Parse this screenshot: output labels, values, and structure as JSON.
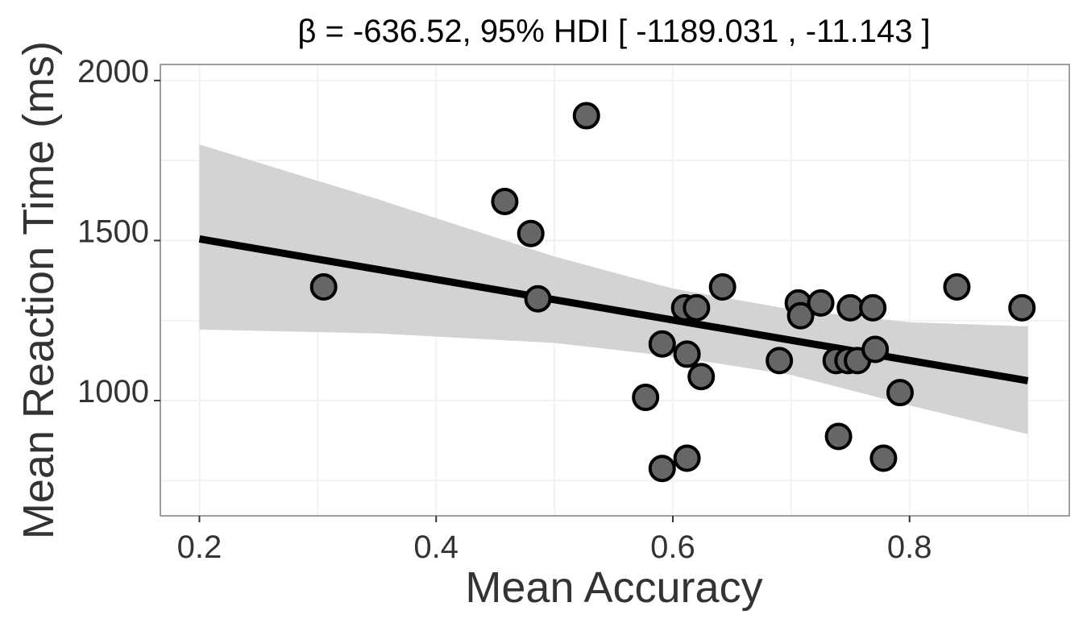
{
  "chart_data": {
    "type": "scatter",
    "title": "β = -636.52, 95% HDI [ -1189.031 , -11.143 ]",
    "xlabel": "Mean Accuracy",
    "ylabel": "Mean Reaction Time (ms)",
    "xlim": [
      0.167,
      0.935
    ],
    "ylim": [
      640,
      2050
    ],
    "x_ticks": [
      0.2,
      0.4,
      0.6,
      0.8
    ],
    "x_tick_labels": [
      "0.2",
      "0.4",
      "0.6",
      "0.8"
    ],
    "y_ticks": [
      1000,
      1500,
      2000
    ],
    "y_tick_labels": [
      "1000",
      "1500",
      "2000"
    ],
    "grid": true,
    "points": [
      {
        "x": 0.305,
        "y": 1355
      },
      {
        "x": 0.458,
        "y": 1622
      },
      {
        "x": 0.48,
        "y": 1522
      },
      {
        "x": 0.486,
        "y": 1318
      },
      {
        "x": 0.527,
        "y": 1890
      },
      {
        "x": 0.577,
        "y": 1010
      },
      {
        "x": 0.591,
        "y": 1177
      },
      {
        "x": 0.591,
        "y": 788
      },
      {
        "x": 0.61,
        "y": 1290
      },
      {
        "x": 0.612,
        "y": 1145
      },
      {
        "x": 0.612,
        "y": 820
      },
      {
        "x": 0.62,
        "y": 1290
      },
      {
        "x": 0.624,
        "y": 1075
      },
      {
        "x": 0.642,
        "y": 1355
      },
      {
        "x": 0.69,
        "y": 1125
      },
      {
        "x": 0.706,
        "y": 1305
      },
      {
        "x": 0.708,
        "y": 1265
      },
      {
        "x": 0.725,
        "y": 1305
      },
      {
        "x": 0.738,
        "y": 1125
      },
      {
        "x": 0.74,
        "y": 888
      },
      {
        "x": 0.748,
        "y": 1125
      },
      {
        "x": 0.75,
        "y": 1290
      },
      {
        "x": 0.756,
        "y": 1125
      },
      {
        "x": 0.769,
        "y": 1290
      },
      {
        "x": 0.771,
        "y": 1160
      },
      {
        "x": 0.778,
        "y": 820
      },
      {
        "x": 0.792,
        "y": 1025
      },
      {
        "x": 0.84,
        "y": 1355
      },
      {
        "x": 0.895,
        "y": 1290
      }
    ],
    "regression": {
      "x": [
        0.2,
        0.9
      ],
      "y": [
        1505,
        1062
      ]
    },
    "confidence_band": {
      "x": [
        0.2,
        0.35,
        0.5,
        0.6,
        0.7,
        0.8,
        0.9
      ],
      "lower": [
        1222,
        1210,
        1180,
        1138,
        1080,
        985,
        895
      ],
      "upper": [
        1800,
        1630,
        1450,
        1350,
        1285,
        1245,
        1232
      ]
    },
    "colors": {
      "point_fill": "#666666",
      "point_stroke": "#000000",
      "line": "#000000",
      "band": "#d3d3d3",
      "grid": "#f2f2f2",
      "panel_border": "#7f7f7f",
      "tick_mark": "#333333"
    }
  }
}
